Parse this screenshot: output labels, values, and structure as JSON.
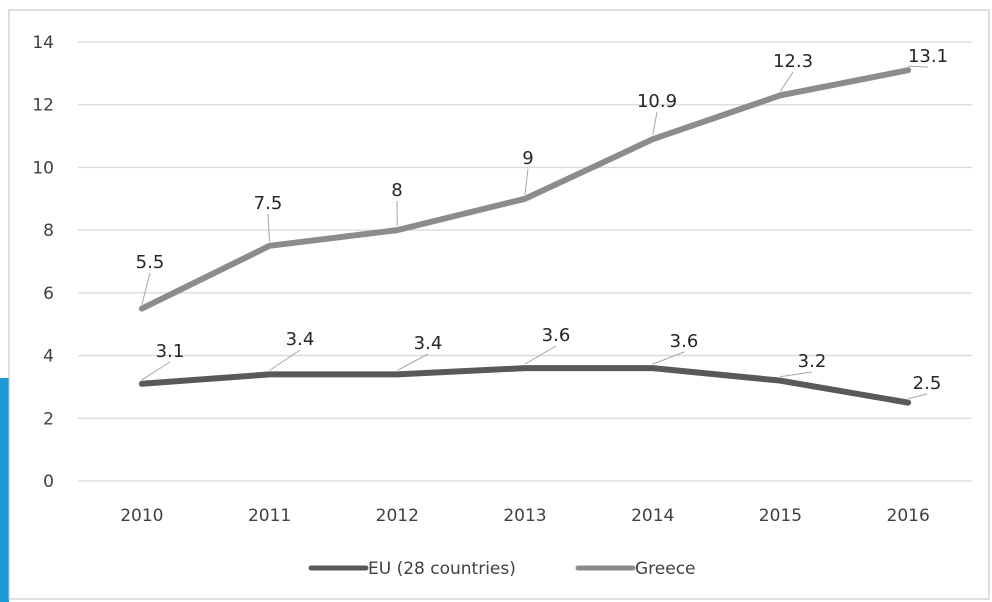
{
  "colors": {
    "eu_line": "#595959",
    "greece_line": "#8c8c8c",
    "grid": "#d9d9d9",
    "accent_strip": "#1a9ad6",
    "leader": "#a6a6a6"
  },
  "chart_data": {
    "type": "line",
    "title": "",
    "xlabel": "",
    "ylabel": "",
    "categories": [
      "2010",
      "2011",
      "2012",
      "2013",
      "2014",
      "2015",
      "2016"
    ],
    "ylim": [
      0,
      14
    ],
    "yticks": [
      "0",
      "2",
      "4",
      "6",
      "8",
      "10",
      "12",
      "14"
    ],
    "grid": true,
    "legend_position": "bottom",
    "series": [
      {
        "name": "EU (28 countries)",
        "values": [
          3.1,
          3.4,
          3.4,
          3.6,
          3.6,
          3.2,
          2.5
        ],
        "labels": [
          "3.1",
          "3.4",
          "3.4",
          "3.6",
          "3.6",
          "3.2",
          "2.5"
        ]
      },
      {
        "name": "Greece",
        "values": [
          5.5,
          7.5,
          8,
          9,
          10.9,
          12.3,
          13.1
        ],
        "labels": [
          "5.5",
          "7.5",
          "8",
          "9",
          "10.9",
          "12.3",
          "13.1"
        ]
      }
    ]
  }
}
